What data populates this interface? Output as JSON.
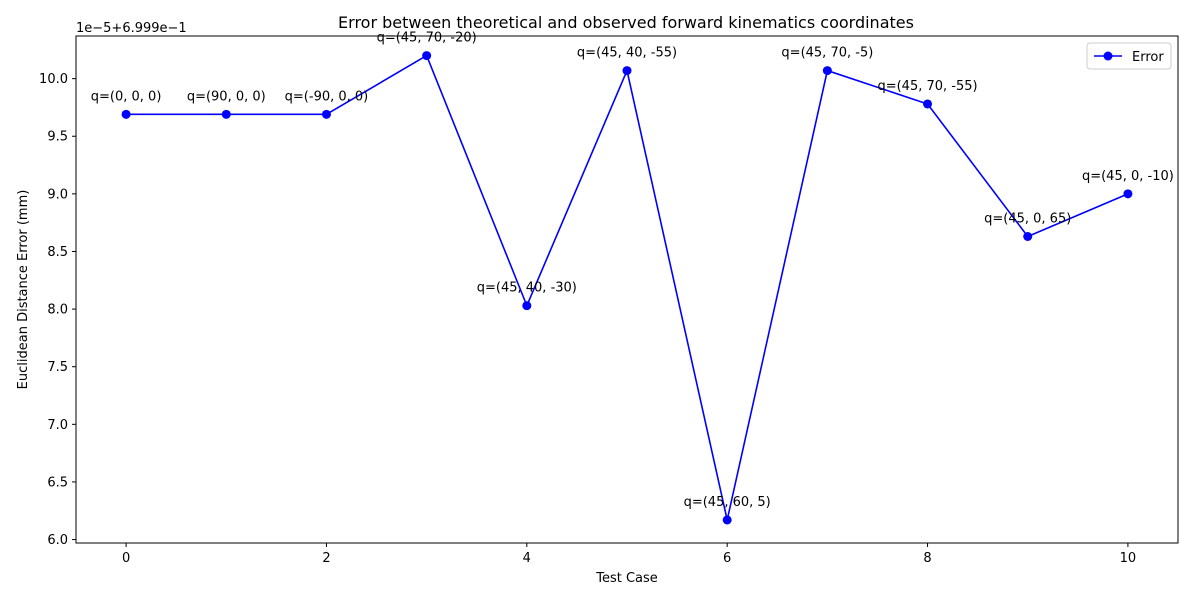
{
  "chart_data": {
    "type": "line",
    "title": "Error between theoretical and observed forward kinematics coordinates",
    "xlabel": "Test Case",
    "ylabel": "Euclidean Distance Error (mm)",
    "offset_label": "1e−5+6.999e−1",
    "xlim": [
      -0.5,
      10.5
    ],
    "ylim": [
      5.97,
      10.37
    ],
    "xticks": [
      0,
      2,
      4,
      6,
      8,
      10
    ],
    "xtick_labels": [
      "0",
      "2",
      "4",
      "6",
      "8",
      "10"
    ],
    "yticks": [
      6.0,
      6.5,
      7.0,
      7.5,
      8.0,
      8.5,
      9.0,
      9.5,
      10.0
    ],
    "ytick_labels": [
      "6.0",
      "6.5",
      "7.0",
      "7.5",
      "8.0",
      "8.5",
      "9.0",
      "9.5",
      "10.0"
    ],
    "grid": false,
    "legend_position": "top-right",
    "series": [
      {
        "name": "Error",
        "color": "#0000ff",
        "marker": "circle",
        "x": [
          0,
          1,
          2,
          3,
          4,
          5,
          6,
          7,
          8,
          9,
          10
        ],
        "y": [
          9.69,
          9.69,
          9.69,
          10.2,
          8.03,
          10.07,
          6.17,
          10.07,
          9.78,
          8.63,
          9.0
        ]
      }
    ],
    "annotations": [
      "q=(0, 0, 0)",
      "q=(90, 0, 0)",
      "q=(-90, 0, 0)",
      "q=(45, 70, -20)",
      "q=(45, 40, -30)",
      "q=(45, 40, -55)",
      "q=(45, 60, 5)",
      "q=(45, 70, -5)",
      "q=(45, 70, -55)",
      "q=(45, 0, 65)",
      "q=(45, 0, -10)"
    ]
  }
}
